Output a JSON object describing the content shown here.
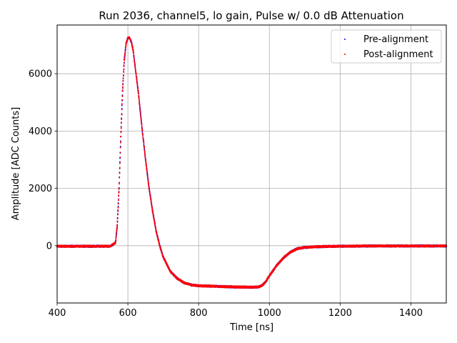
{
  "chart_data": {
    "type": "scatter",
    "title": "Run 2036, channel5, lo gain, Pulse w/ 0.0 dB Attenuation",
    "xlabel": "Time [ns]",
    "ylabel": "Amplitude [ADC Counts]",
    "xlim": [
      400,
      1500
    ],
    "ylim": [
      -2000,
      7700
    ],
    "xticks": [
      400,
      600,
      800,
      1000,
      1200,
      1400
    ],
    "yticks": [
      0,
      2000,
      4000,
      6000
    ],
    "grid": true,
    "legend_position": "top-right",
    "series": [
      {
        "name": "Pre-alignment",
        "color": "#0000ff",
        "x": [
          400,
          450,
          500,
          550,
          565,
          570,
          575,
          580,
          585,
          590,
          595,
          600,
          605,
          610,
          615,
          620,
          630,
          640,
          650,
          660,
          670,
          680,
          690,
          700,
          720,
          740,
          760,
          780,
          800,
          850,
          900,
          950,
          970,
          980,
          990,
          1000,
          1020,
          1040,
          1060,
          1080,
          1100,
          1150,
          1200,
          1300,
          1400,
          1500
        ],
        "values": [
          -20,
          -20,
          -20,
          -20,
          100,
          700,
          2000,
          3800,
          5400,
          6500,
          7050,
          7250,
          7250,
          7100,
          6800,
          6300,
          5300,
          4100,
          3000,
          2000,
          1200,
          500,
          0,
          -400,
          -900,
          -1150,
          -1300,
          -1370,
          -1400,
          -1420,
          -1440,
          -1450,
          -1440,
          -1380,
          -1250,
          -1050,
          -700,
          -420,
          -220,
          -100,
          -60,
          -30,
          -20,
          -10,
          -10,
          -10
        ]
      },
      {
        "name": "Post-alignment",
        "color": "#ff0000",
        "x": [
          400,
          450,
          500,
          550,
          565,
          570,
          575,
          580,
          585,
          590,
          595,
          600,
          605,
          610,
          615,
          620,
          630,
          640,
          650,
          660,
          670,
          680,
          690,
          700,
          720,
          740,
          760,
          780,
          800,
          850,
          900,
          950,
          970,
          980,
          990,
          1000,
          1020,
          1040,
          1060,
          1080,
          1100,
          1150,
          1200,
          1300,
          1400,
          1500
        ],
        "values": [
          -20,
          -20,
          -20,
          -20,
          100,
          700,
          2000,
          3800,
          5400,
          6500,
          7050,
          7250,
          7250,
          7100,
          6800,
          6300,
          5300,
          4100,
          3000,
          2000,
          1200,
          500,
          0,
          -400,
          -900,
          -1150,
          -1300,
          -1370,
          -1400,
          -1420,
          -1440,
          -1450,
          -1440,
          -1380,
          -1250,
          -1050,
          -700,
          -420,
          -220,
          -100,
          -60,
          -30,
          -20,
          -10,
          -10,
          -10
        ]
      }
    ]
  }
}
